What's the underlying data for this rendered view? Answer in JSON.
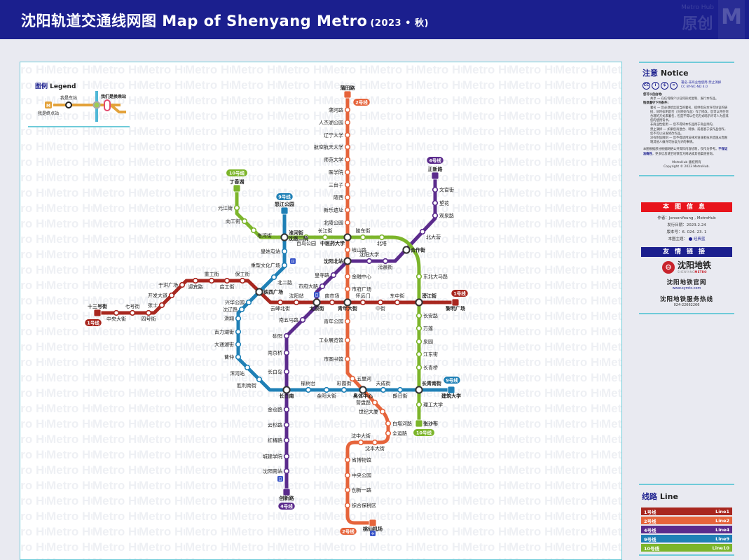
{
  "header": {
    "title": "沈阳轨道交通线网图  Map of Shenyang Metro",
    "subtitle": "(2023 • 秋)",
    "watermark_small": "Metro Hub",
    "watermark_big": "原创",
    "logo_letter": "M"
  },
  "watermark": "Metro Hub",
  "legend": {
    "title_cn": "图例",
    "title_en": "Legend",
    "terminal": "我是终点站",
    "station": "我是车站",
    "interchange": "我们是换乘站",
    "terminal_mark": "M"
  },
  "notice": {
    "title_cn": "注意",
    "title_en": "Notice",
    "cc_icons": [
      "CC",
      "i",
      "$",
      "="
    ],
    "cc_text": "署名-非商业性使用-禁止演绎",
    "cc_license": "CC BY-NC-ND 4.0",
    "free_heading": "您可以自由地:",
    "free_share": "共享 — 在任何媒介以任何形式复制、发行本作品。",
    "cond_heading": "惟须遵守下列条件:",
    "cond_by": "署名 — 您必须给出适当的署名，提供指向本许可协议的链接，同时标明是否（对原始作品）作了修改。您可以用任何合理的方式来署名，但是不得以任何方式暗示许可人为您或您的使用背书。",
    "cond_nc": "非商业性使用 — 您不得将本作品用于商业目的。",
    "cond_nd": "禁止演绎 — 如果您再混合、转换、或者基于该作品创作，您不可以分发修改作品。",
    "cond_nr": "没有附加限制 — 您不得适用法律术语或者技术措施从而限制其他人做许可协议允许的事情。",
    "disclaimer": "本图根据部分根据网络公开资料内容绘制，仅作为参考。",
    "disclaimer_bold": "不保证准确性",
    "disclaimer_rest": "，更多信息请至地铁官方网站或其他渠道查询。",
    "rights": "MetroHub 版权所有",
    "copyright": "Copyright © 2023 MetroHub."
  },
  "info": {
    "title": "本图信息",
    "author": "作者：JensonYoung , MetroHub",
    "date": "发行日期：2023.2.24",
    "version": "版本号：6. 024. 23. 1",
    "theme_label": "本图主题：",
    "theme": "经典蓝",
    "theme_color": "#1b1f8e"
  },
  "links": {
    "title": "友情链接",
    "logo_name": "沈阳地铁",
    "logo_sub": "SHENYANG",
    "logo_sub2": "METRO",
    "site_label": "沈阳地铁官网",
    "site_url": "www.symtc.com",
    "hotline_label": "沈阳地铁服务热线",
    "hotline": "024-22662266"
  },
  "lines_panel": {
    "title_cn": "线路",
    "title_en": "Line"
  },
  "lines": [
    {
      "id": "1",
      "label": "1号线",
      "en": "Line1",
      "color": "#a8271f",
      "stations": [
        "十三号街",
        "中央大街",
        "七号街",
        "四号街",
        "张士",
        "开发大道",
        "于洪广场",
        "迎宾路",
        "重工街",
        "启工街",
        "保工街",
        "铁西广场",
        "云峰北街",
        "沈阳站",
        "太原街",
        "南市场",
        "青年大街",
        "怀远门",
        "中街",
        "东中街",
        "滂江街",
        "黎明广场"
      ]
    },
    {
      "id": "2",
      "label": "2号线",
      "en": "Line2",
      "color": "#e6643b",
      "stations": [
        "蒲田路",
        "蒲河路",
        "人杰湖公园",
        "辽宁大学",
        "航空航天大学",
        "师范大学",
        "医学院",
        "三台子",
        "陵西",
        "新乐遗址",
        "北陵公园",
        "中医药大学",
        "岐山路",
        "沈阳北站",
        "金融中心",
        "市府广场",
        "青年大街",
        "青年公园",
        "工业展览馆",
        "市图书馆",
        "五里河",
        "奥体中心",
        "营盘路",
        "世纪大厦",
        "白塔河路",
        "全运路",
        "沈本大街",
        "沈中大街",
        "省博物馆",
        "中央公园",
        "创新一路",
        "综合保税区",
        "桃仙机场"
      ]
    },
    {
      "id": "4",
      "label": "4号线",
      "en": "Line4",
      "color": "#5b2b8c",
      "stations": [
        "正新路",
        "文官街",
        "望花",
        "观泉路",
        "北大营",
        "合作街",
        "滂晨街",
        "沈阳大学",
        "沈阳北站",
        "皇寺路",
        "市府大路",
        "太原街",
        "南五马路",
        "砂阳",
        "南京桥",
        "长白岛",
        "长白南",
        "金仓路",
        "云杉路",
        "红椿路",
        "城建学院",
        "沈阳南站",
        "创新路"
      ]
    },
    {
      "id": "9",
      "label": "9号线",
      "en": "Line9",
      "color": "#1f80b6",
      "stations": [
        "怒江公园",
        "淮河街/沈医二院",
        "皇姑屯站",
        "重型文化广场",
        "北二路",
        "铁西广场",
        "兴华公园",
        "沈辽路",
        "滑翔",
        "吉力湖街",
        "大通湖街",
        "曹仲",
        "浑河站",
        "胜利南街",
        "长白南",
        "榆树台",
        "金阳大街",
        "彩霞街",
        "奥体中心",
        "天成街",
        "朗日街",
        "长青南街",
        "建筑大学"
      ]
    },
    {
      "id": "10",
      "label": "10号线",
      "en": "Line10",
      "color": "#7cb52b",
      "stations": [
        "丁香湖",
        "元江街",
        "向工街",
        "塔湾街",
        "淮河街",
        "百鸟公园",
        "长江街",
        "中医药大学",
        "陵东街",
        "北塔",
        "东北大马路",
        "滂江街",
        "长安路",
        "万莲",
        "泉园",
        "江东街",
        "长青桥",
        "长青南街",
        "理工大学",
        "张沙布"
      ]
    }
  ]
}
